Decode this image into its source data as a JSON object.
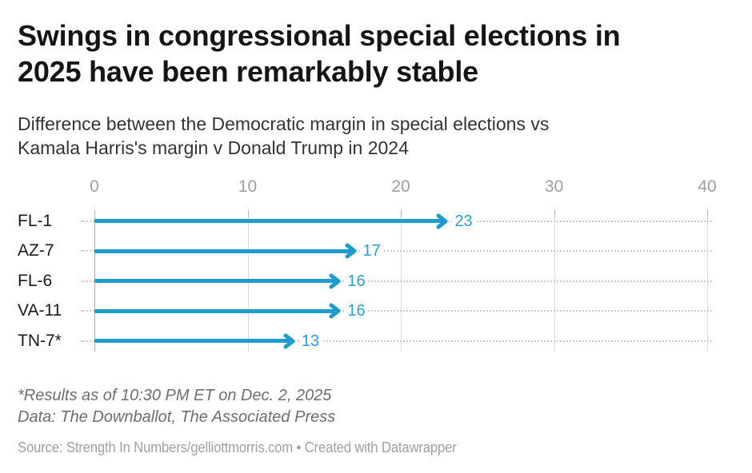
{
  "header": {
    "title_line1": "Swings in congressional special elections in",
    "title_line2": "2025 have been remarkably stable",
    "subtitle_line1": "Difference between the Democratic margin in special elections vs",
    "subtitle_line2": "Kamala Harris's margin v Donald Trump in 2024"
  },
  "chart_data": {
    "type": "bar",
    "style": "horizontal-arrow",
    "title": "Swings in congressional special elections in 2025 have been remarkably stable",
    "subtitle": "Difference between the Democratic margin in special elections vs Kamala Harris's margin v Donald Trump in 2024",
    "categories": [
      "FL-1",
      "AZ-7",
      "FL-6",
      "VA-11",
      "TN-7*"
    ],
    "values": [
      23,
      17,
      16,
      16,
      13
    ],
    "xlabel": "",
    "ylabel": "",
    "xlim": [
      0,
      40
    ],
    "x_ticks": [
      0,
      10,
      20,
      30,
      40
    ],
    "grid": "vertical-on",
    "value_labels_shown": true,
    "legend_position": "none",
    "colors": {
      "arrow": "#1d9ccd",
      "value_label": "#2a9ed2",
      "gridline": "#dcdcdc",
      "zero_line": "#a8a8a8",
      "dotted_leader": "#cdcdcd",
      "axis_text": "#9e9e9e",
      "row_label_text": "#1a1a1a"
    }
  },
  "footnotes": {
    "line1": "*Results as of 10:30 PM ET on Dec. 2, 2025",
    "line2": "Data: The Downballot, The Associated Press"
  },
  "attribution": {
    "text": "Source: Strength In Numbers/gelliottmorris.com • Created with Datawrapper"
  }
}
